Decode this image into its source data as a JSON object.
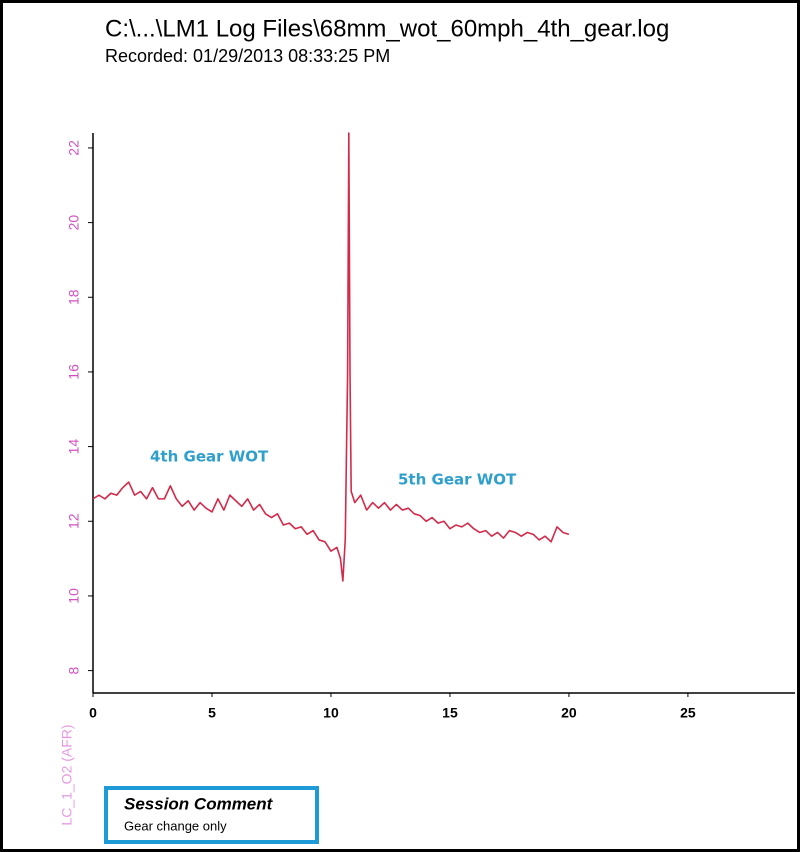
{
  "chart_data": {
    "type": "line",
    "title": "C:\\...\\LM1 Log Files\\68mm_wot_60mph_4th_gear.log",
    "subtitle": "Recorded: 01/29/2013 08:33:25 PM",
    "y_label": "LC_1_O2 (AFR)",
    "annotations": [
      "4th Gear WOT",
      "5th Gear WOT"
    ],
    "session_comment": {
      "title": "Session Comment",
      "text": "Gear change only"
    },
    "xlim": [
      0,
      29.5
    ],
    "xticks": [
      0,
      5,
      10,
      15,
      20,
      25
    ],
    "ylim": [
      7.4,
      22.4
    ],
    "yticks": [
      8,
      10,
      12,
      14,
      16,
      18,
      20,
      22
    ],
    "x": [
      0,
      0.25,
      0.5,
      0.75,
      1,
      1.25,
      1.5,
      1.75,
      2,
      2.25,
      2.5,
      2.75,
      3,
      3.25,
      3.5,
      3.75,
      4,
      4.25,
      4.5,
      4.75,
      5,
      5.25,
      5.5,
      5.75,
      6,
      6.25,
      6.5,
      6.75,
      7,
      7.25,
      7.5,
      7.75,
      8,
      8.25,
      8.5,
      8.75,
      9,
      9.25,
      9.5,
      9.75,
      10,
      10.25,
      10.4,
      10.5,
      10.6,
      10.7,
      10.75,
      10.8,
      10.85,
      11,
      11.25,
      11.5,
      11.75,
      12,
      12.25,
      12.5,
      12.75,
      13,
      13.25,
      13.5,
      13.75,
      14,
      14.25,
      14.5,
      14.75,
      15,
      15.25,
      15.5,
      15.75,
      16,
      16.25,
      16.5,
      16.75,
      17,
      17.25,
      17.5,
      17.75,
      18,
      18.25,
      18.5,
      18.75,
      19,
      19.25,
      19.5,
      19.75,
      20
    ],
    "series": [
      {
        "name": "LC_1_O2 (AFR)",
        "color": "#d42a4a",
        "values": [
          12.6,
          12.7,
          12.6,
          12.75,
          12.7,
          12.9,
          13.05,
          12.7,
          12.8,
          12.6,
          12.9,
          12.6,
          12.6,
          12.95,
          12.6,
          12.4,
          12.55,
          12.3,
          12.5,
          12.35,
          12.25,
          12.6,
          12.3,
          12.7,
          12.55,
          12.4,
          12.6,
          12.3,
          12.45,
          12.2,
          12.1,
          12.2,
          11.9,
          11.95,
          11.8,
          11.85,
          11.65,
          11.75,
          11.5,
          11.45,
          11.2,
          11.3,
          11.0,
          10.4,
          11.5,
          16.0,
          22.4,
          16.0,
          12.8,
          12.5,
          12.7,
          12.3,
          12.5,
          12.35,
          12.5,
          12.3,
          12.45,
          12.3,
          12.35,
          12.2,
          12.15,
          12.0,
          12.1,
          11.95,
          12.0,
          11.8,
          11.9,
          11.85,
          11.95,
          11.8,
          11.7,
          11.75,
          11.6,
          11.7,
          11.55,
          11.75,
          11.7,
          11.6,
          11.7,
          11.65,
          11.5,
          11.6,
          11.45,
          11.85,
          11.7,
          11.65
        ]
      }
    ]
  }
}
